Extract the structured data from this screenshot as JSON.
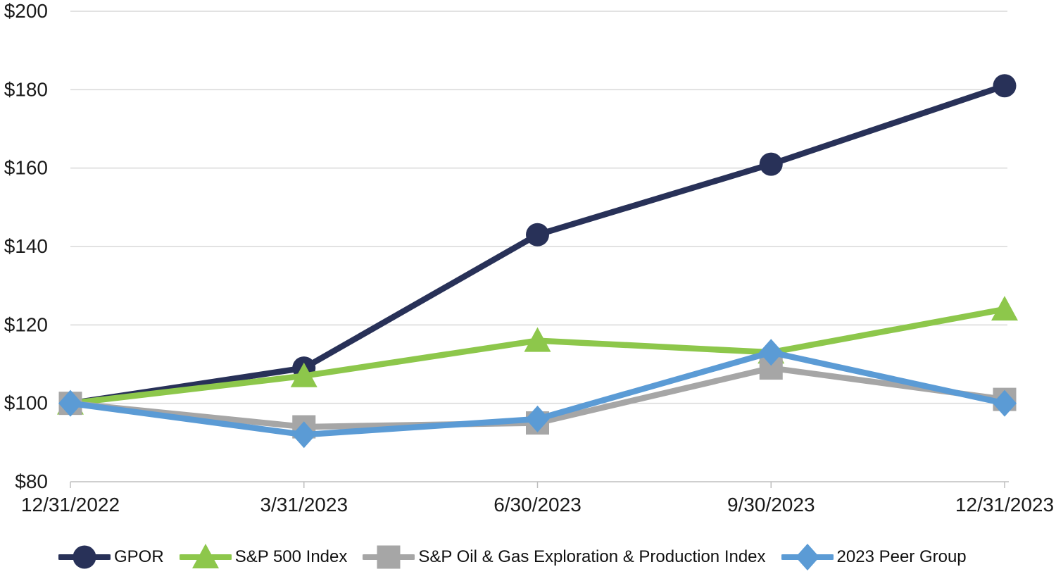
{
  "chart_data": {
    "type": "line",
    "title": "",
    "x_categories": [
      "12/31/2022",
      "3/31/2023",
      "6/30/2023",
      "9/30/2023",
      "12/31/2023"
    ],
    "y_axis": {
      "min": 80,
      "max": 200,
      "step": 20,
      "prefix": "$",
      "tick_labels": [
        "$80",
        "$100",
        "$120",
        "$140",
        "$160",
        "$180",
        "$200"
      ]
    },
    "grid": "horizontal",
    "legend_position": "bottom",
    "series": [
      {
        "name": "GPOR",
        "marker": "circle",
        "color": "#283158",
        "values": [
          100,
          109,
          143,
          161,
          181
        ]
      },
      {
        "name": "S&P 500 Index",
        "marker": "triangle",
        "color": "#8DC74B",
        "values": [
          100,
          107,
          116,
          113,
          124
        ]
      },
      {
        "name": "S&P Oil & Gas Exploration & Production Index",
        "marker": "square",
        "color": "#A6A6A6",
        "values": [
          100,
          94,
          95,
          109,
          101
        ]
      },
      {
        "name": "2023 Peer Group",
        "marker": "diamond",
        "color": "#5B9BD5",
        "values": [
          100,
          92,
          96,
          113,
          100
        ]
      }
    ]
  },
  "colors": {
    "gridline": "#D9D9D9",
    "axis": "#BFBFBF",
    "text": "#1A1A1A",
    "background": "#FFFFFF"
  }
}
